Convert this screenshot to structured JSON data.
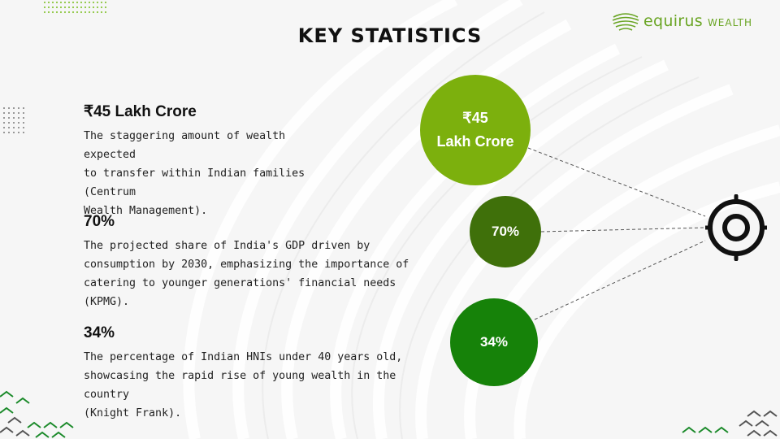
{
  "title": "KEY STATISTICS",
  "logo": {
    "name": "equirus",
    "sub": "WEALTH",
    "color": "#6aa524",
    "icon": "leaf-sphere-icon"
  },
  "stats": [
    {
      "heading": "₹45 Lakh Crore",
      "lines": [
        "The staggering amount of wealth expected",
        "to transfer within Indian families (Centrum",
        "Wealth Management)."
      ]
    },
    {
      "heading": "70%",
      "lines": [
        "The projected share of India's GDP driven by",
        "consumption by 2030, emphasizing the importance of",
        "catering to younger generations' financial needs (KPMG)."
      ]
    },
    {
      "heading": "34%",
      "lines": [
        "The percentage of Indian HNIs under 40 years old,",
        "showcasing the rapid rise of young wealth in the country",
        "(Knight Frank)."
      ]
    }
  ],
  "circles": [
    {
      "line1": "₹45",
      "line2": "Lakh Crore",
      "color": "#7cb00d"
    },
    {
      "label": "70%",
      "color": "#3f700a"
    },
    {
      "label": "34%",
      "color": "#168209"
    }
  ],
  "target_icon": "target-icon",
  "colors": {
    "accent": "#6aa524",
    "dark": "#111111"
  }
}
